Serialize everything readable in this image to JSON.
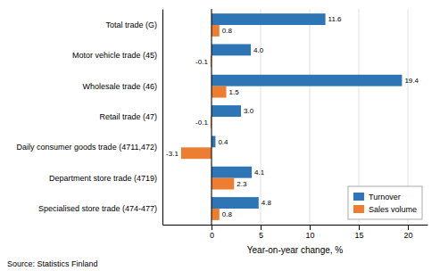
{
  "chart_data": {
    "type": "bar",
    "orientation": "horizontal",
    "categories": [
      "Total trade (G)",
      "Motor vehicle trade (45)",
      "Wholesale trade (46)",
      "Retail trade (47)",
      "Daily consumer goods trade (4711,472)",
      "Department store trade (4719)",
      "Specialised store trade (474-477)"
    ],
    "series": [
      {
        "name": "Turnover",
        "color": "#2E75B6",
        "values": [
          11.6,
          4.0,
          19.4,
          3.0,
          0.4,
          4.1,
          4.8
        ],
        "value_labels": [
          "11.6",
          "4.0",
          "19.4",
          "3.0",
          "0.4",
          "4.1",
          "4.8"
        ]
      },
      {
        "name": "Sales volume",
        "color": "#ED7D31",
        "values": [
          0.8,
          -0.1,
          1.5,
          -0.1,
          -3.1,
          2.3,
          0.8
        ]
      }
    ],
    "xlabel": "Year-on-year change, %",
    "annotations": [
      "Source: Statistics Finland"
    ],
    "xlim": [
      -5,
      22
    ],
    "xticks": [
      0,
      5,
      10,
      15,
      20
    ],
    "grid": true,
    "legend": "lower right",
    "data_labels": true
  }
}
